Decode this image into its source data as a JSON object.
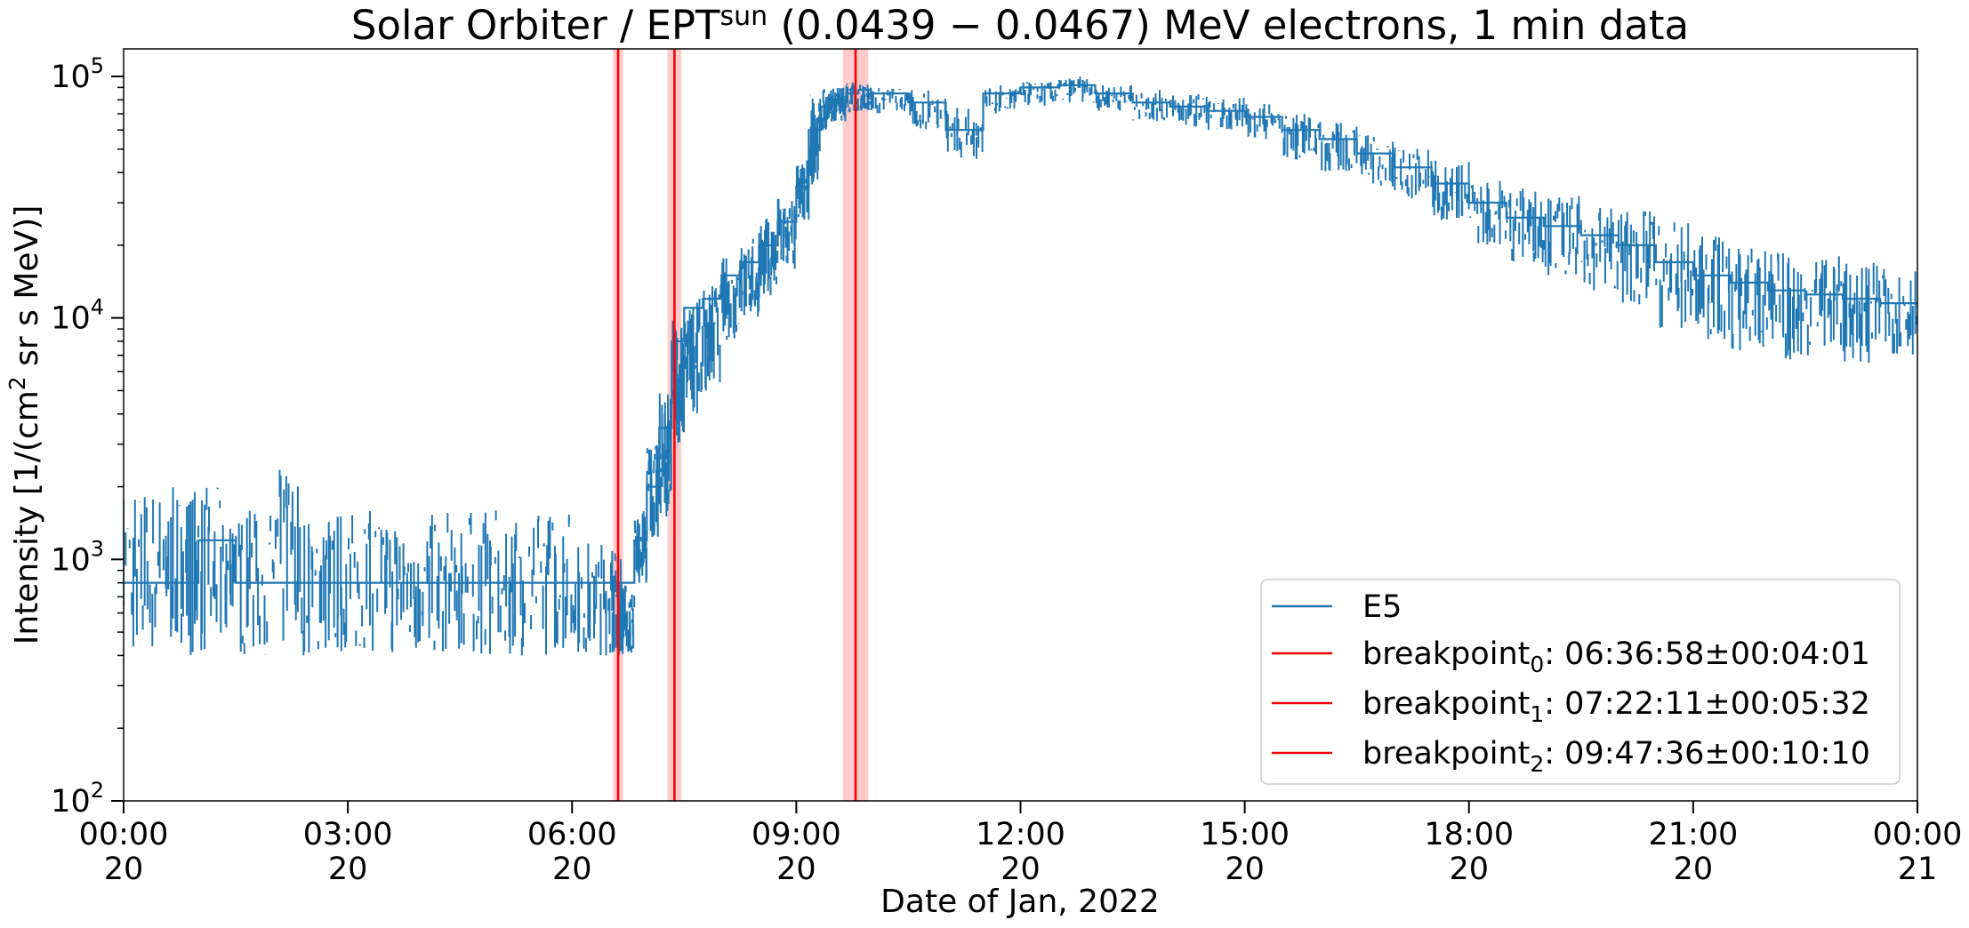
{
  "chart_data": {
    "type": "line",
    "title": {
      "prefix": "Solar Orbiter / EPT",
      "sup": "sun",
      "suffix": " (0.0439 − 0.0467) MeV electrons, 1 min data"
    },
    "xlabel": "Date of Jan, 2022",
    "ylabel": {
      "prefix": "Intensity [1/(cm",
      "sup": "2",
      "suffix": " sr s MeV)]"
    },
    "x_scale": "time",
    "xlim": [
      "2022-01-20T00:00",
      "2022-01-21T00:00"
    ],
    "x_ticks": [
      {
        "time": "2022-01-20T00:00",
        "line1": "00:00",
        "line2": "20"
      },
      {
        "time": "2022-01-20T03:00",
        "line1": "03:00",
        "line2": "20"
      },
      {
        "time": "2022-01-20T06:00",
        "line1": "06:00",
        "line2": "20"
      },
      {
        "time": "2022-01-20T09:00",
        "line1": "09:00",
        "line2": "20"
      },
      {
        "time": "2022-01-20T12:00",
        "line1": "12:00",
        "line2": "20"
      },
      {
        "time": "2022-01-20T15:00",
        "line1": "15:00",
        "line2": "20"
      },
      {
        "time": "2022-01-20T18:00",
        "line1": "18:00",
        "line2": "20"
      },
      {
        "time": "2022-01-20T21:00",
        "line1": "21:00",
        "line2": "20"
      },
      {
        "time": "2022-01-21T00:00",
        "line1": "00:00",
        "line2": "21"
      }
    ],
    "y_scale": "log",
    "ylim": [
      100,
      130000
    ],
    "y_ticks": [
      {
        "value": 100,
        "base": "10",
        "exp": "2"
      },
      {
        "value": 1000,
        "base": "10",
        "exp": "3"
      },
      {
        "value": 10000,
        "base": "10",
        "exp": "4"
      },
      {
        "value": 100000,
        "base": "10",
        "exp": "5"
      }
    ],
    "grid": false,
    "legend_position": "bottom-right",
    "colors": {
      "series": "#1f77b4",
      "breakpoint": "#ff0000",
      "band": "#ffb3b3"
    },
    "series": [
      {
        "name": "E5",
        "style": "steps",
        "x": [
          "2022-01-20T00:00",
          "2022-01-20T00:30",
          "2022-01-20T01:00",
          "2022-01-20T01:30",
          "2022-01-20T02:00",
          "2022-01-20T02:30",
          "2022-01-20T03:00",
          "2022-01-20T03:30",
          "2022-01-20T04:00",
          "2022-01-20T04:30",
          "2022-01-20T05:00",
          "2022-01-20T05:30",
          "2022-01-20T06:00",
          "2022-01-20T06:30",
          "2022-01-20T06:40",
          "2022-01-20T06:50",
          "2022-01-20T07:00",
          "2022-01-20T07:10",
          "2022-01-20T07:20",
          "2022-01-20T07:30",
          "2022-01-20T07:45",
          "2022-01-20T08:00",
          "2022-01-20T08:15",
          "2022-01-20T08:30",
          "2022-01-20T08:45",
          "2022-01-20T09:00",
          "2022-01-20T09:10",
          "2022-01-20T09:20",
          "2022-01-20T09:30",
          "2022-01-20T09:40",
          "2022-01-20T09:50",
          "2022-01-20T10:00",
          "2022-01-20T10:30",
          "2022-01-20T11:00",
          "2022-01-20T11:30",
          "2022-01-20T12:00",
          "2022-01-20T12:30",
          "2022-01-20T13:00",
          "2022-01-20T13:30",
          "2022-01-20T14:00",
          "2022-01-20T14:30",
          "2022-01-20T15:00",
          "2022-01-20T15:30",
          "2022-01-20T16:00",
          "2022-01-20T16:30",
          "2022-01-20T17:00",
          "2022-01-20T17:30",
          "2022-01-20T18:00",
          "2022-01-20T18:30",
          "2022-01-20T19:00",
          "2022-01-20T19:30",
          "2022-01-20T20:00",
          "2022-01-20T20:30",
          "2022-01-20T21:00",
          "2022-01-20T21:30",
          "2022-01-20T22:00",
          "2022-01-20T22:30",
          "2022-01-20T23:00",
          "2022-01-20T23:30",
          "2022-01-21T00:00"
        ],
        "values": [
          800,
          800,
          1200,
          800,
          800,
          800,
          800,
          800,
          800,
          800,
          800,
          800,
          800,
          800,
          800,
          1200,
          2000,
          3500,
          8000,
          11000,
          12000,
          15000,
          17000,
          20000,
          25000,
          35000,
          60000,
          75000,
          80000,
          85000,
          88000,
          85000,
          78000,
          60000,
          85000,
          90000,
          92000,
          85000,
          78000,
          75000,
          72000,
          68000,
          60000,
          55000,
          48000,
          42000,
          36000,
          30000,
          26000,
          24000,
          22000,
          20000,
          17000,
          15000,
          14000,
          13000,
          12500,
          12000,
          11500,
          11000
        ],
        "noise_band": [
          [
            400,
            2000
          ],
          [
            400,
            2000
          ],
          [
            400,
            2000
          ],
          [
            400,
            1600
          ],
          [
            400,
            2400
          ],
          [
            400,
            1600
          ],
          [
            400,
            1600
          ],
          [
            400,
            1600
          ],
          [
            400,
            1600
          ],
          [
            400,
            1600
          ],
          [
            400,
            1600
          ],
          [
            400,
            1600
          ],
          [
            400,
            1200
          ],
          [
            400,
            1200
          ],
          [
            400,
            800
          ],
          [
            800,
            1600
          ],
          [
            1200,
            3000
          ],
          [
            1500,
            5000
          ],
          [
            3000,
            10000
          ],
          [
            4000,
            12000
          ],
          [
            5000,
            14000
          ],
          [
            8000,
            18000
          ],
          [
            10000,
            22000
          ],
          [
            12000,
            26000
          ],
          [
            15000,
            32000
          ],
          [
            25000,
            45000
          ],
          [
            35000,
            85000
          ],
          [
            60000,
            90000
          ],
          [
            65000,
            92000
          ],
          [
            70000,
            95000
          ],
          [
            72000,
            93000
          ],
          [
            70000,
            90000
          ],
          [
            60000,
            88000
          ],
          [
            45000,
            75000
          ],
          [
            70000,
            92000
          ],
          [
            75000,
            95000
          ],
          [
            78000,
            100000
          ],
          [
            72000,
            92000
          ],
          [
            65000,
            88000
          ],
          [
            62000,
            85000
          ],
          [
            60000,
            82000
          ],
          [
            55000,
            78000
          ],
          [
            45000,
            70000
          ],
          [
            40000,
            65000
          ],
          [
            35000,
            58000
          ],
          [
            30000,
            52000
          ],
          [
            25000,
            45000
          ],
          [
            20000,
            38000
          ],
          [
            17000,
            35000
          ],
          [
            15000,
            32000
          ],
          [
            13000,
            30000
          ],
          [
            11000,
            28000
          ],
          [
            9000,
            25000
          ],
          [
            8000,
            22000
          ],
          [
            7000,
            20000
          ],
          [
            6500,
            19000
          ],
          [
            7000,
            18000
          ],
          [
            6500,
            17000
          ],
          [
            7000,
            16000
          ],
          [
            8000,
            15000
          ]
        ]
      }
    ],
    "breakpoints": [
      {
        "name_prefix": "breakpoint",
        "sub": "0",
        "label_suffix": ": 06:36:58±00:04:01",
        "time": "2022-01-20T06:36:58",
        "uncertainty_seconds": 241
      },
      {
        "name_prefix": "breakpoint",
        "sub": "1",
        "label_suffix": ": 07:22:11±00:05:32",
        "time": "2022-01-20T07:22:11",
        "uncertainty_seconds": 332
      },
      {
        "name_prefix": "breakpoint",
        "sub": "2",
        "label_suffix": ": 09:47:36±00:10:10",
        "time": "2022-01-20T09:47:36",
        "uncertainty_seconds": 610
      }
    ]
  }
}
